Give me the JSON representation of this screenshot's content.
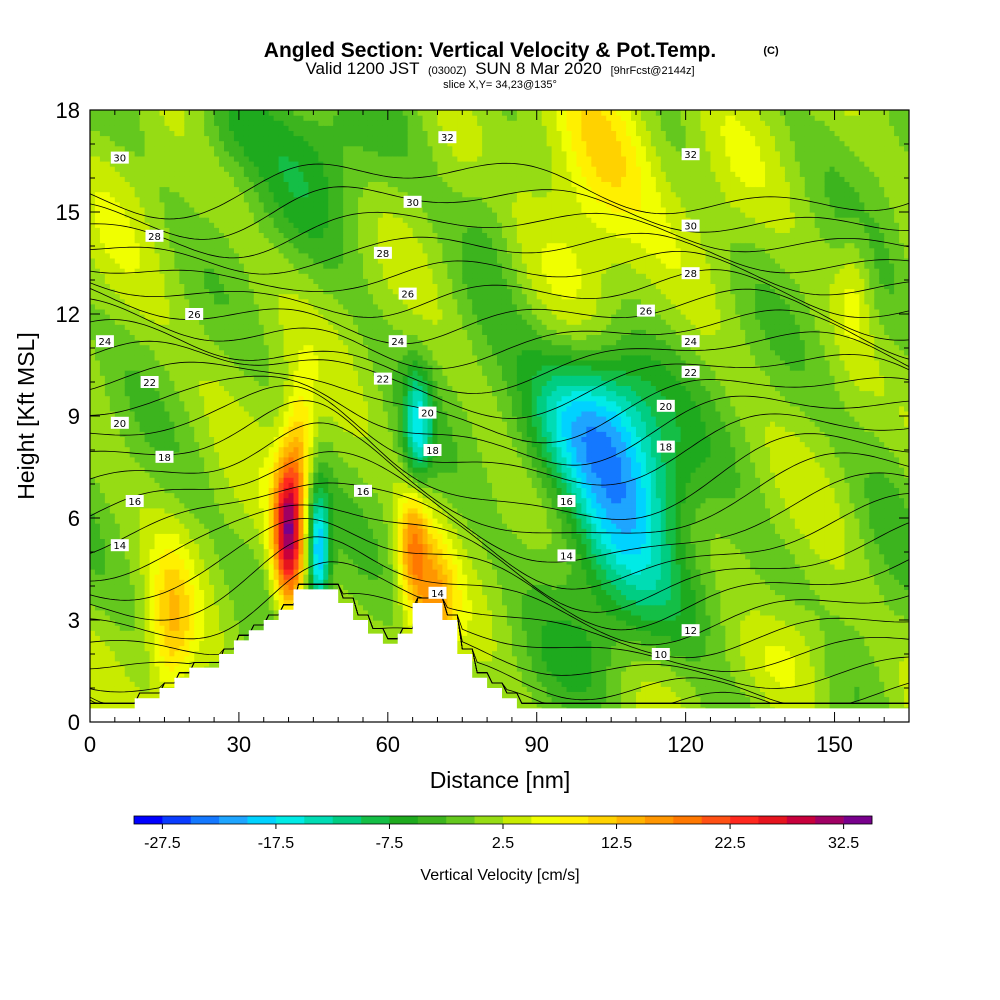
{
  "chart_data": {
    "type": "heatmap",
    "title": "Angled Section: Vertical Velocity & Pot.Temp.",
    "title_mark": "(C)",
    "subtitle_parts": [
      "Valid 1200 JST",
      "(0300Z)",
      "SUN 8 Mar 2020",
      "[9hrFcst@2144z]"
    ],
    "slice_label": "slice X,Y= 34,23@135°",
    "xlabel": "Distance [nm]",
    "ylabel": "Height [Kft MSL]",
    "xlim": [
      0,
      165
    ],
    "ylim": [
      0,
      18
    ],
    "x_ticks": [
      0,
      30,
      60,
      90,
      120,
      150
    ],
    "y_ticks": [
      0,
      3,
      6,
      9,
      12,
      15,
      18
    ],
    "colorbar": {
      "label": "Vertical Velocity [cm/s]",
      "tick_labels": [
        "-27.5",
        "-17.5",
        "-7.5",
        "2.5",
        "12.5",
        "22.5",
        "32.5"
      ],
      "tick_values": [
        -27.5,
        -17.5,
        -7.5,
        2.5,
        12.5,
        22.5,
        32.5
      ],
      "min": -30,
      "max": 35,
      "colors": [
        "#0000ff",
        "#0a3cff",
        "#1478ff",
        "#1ea5ff",
        "#00d2ff",
        "#00ebe6",
        "#00dcb4",
        "#00cd82",
        "#14be46",
        "#1eaa1e",
        "#3cb41e",
        "#64c81e",
        "#96dc14",
        "#c8eb00",
        "#f0ff00",
        "#fff000",
        "#ffd200",
        "#ffb400",
        "#ff9600",
        "#ff7800",
        "#ff5014",
        "#ff281e",
        "#e6141e",
        "#c8003c",
        "#a00064",
        "#78008c"
      ]
    },
    "background_velocity": 0.5,
    "velocity_features": [
      {
        "x": 40,
        "y": 5.6,
        "sx": 2.2,
        "sy": 1.6,
        "v": 30
      },
      {
        "x": 42.5,
        "y": 8.3,
        "sx": 2.0,
        "sy": 1.3,
        "v": 9
      },
      {
        "x": 46,
        "y": 5.0,
        "sx": 1.6,
        "sy": 1.3,
        "v": -21
      },
      {
        "x": 16.5,
        "y": 2.7,
        "sx": 3.2,
        "sy": 1.6,
        "v": 11
      },
      {
        "x": 65,
        "y": 5.2,
        "sx": 2.2,
        "sy": 1.3,
        "v": 15
      },
      {
        "x": 69.5,
        "y": 3.4,
        "sx": 3.0,
        "sy": 1.4,
        "v": 13
      },
      {
        "x": 66,
        "y": 8.6,
        "sx": 2.0,
        "sy": 1.2,
        "v": -15
      },
      {
        "x": 101,
        "y": 8.9,
        "sx": 9,
        "sy": 1.5,
        "v": -19
      },
      {
        "x": 108,
        "y": 6.3,
        "sx": 8,
        "sy": 1.8,
        "v": -16
      },
      {
        "x": 103,
        "y": 16.8,
        "sx": 8,
        "sy": 2.0,
        "v": 10
      },
      {
        "x": 97,
        "y": 13.5,
        "sx": 7,
        "sy": 1.5,
        "v": 4
      },
      {
        "x": 154,
        "y": 12.8,
        "sx": 2.5,
        "sy": 1.2,
        "v": 5
      },
      {
        "x": 143,
        "y": 2.0,
        "sx": 6,
        "sy": 1.2,
        "v": 5
      },
      {
        "x": 128,
        "y": 16.0,
        "sx": 6,
        "sy": 1.8,
        "v": 2
      },
      {
        "x": 45,
        "y": 16.5,
        "sx": 10,
        "sy": 1.8,
        "v": -5
      },
      {
        "x": 28,
        "y": 17.5,
        "sx": 6,
        "sy": 1.0,
        "v": -5
      },
      {
        "x": 80,
        "y": 15.0,
        "sx": 4,
        "sy": 2.0,
        "v": -3
      },
      {
        "x": 5,
        "y": 15.5,
        "sx": 6,
        "sy": 2.0,
        "v": 2
      },
      {
        "x": 118,
        "y": 3.5,
        "sx": 12,
        "sy": 1.2,
        "v": -5
      },
      {
        "x": 98,
        "y": 1.8,
        "sx": 8,
        "sy": 1.0,
        "v": -3
      },
      {
        "x": 31,
        "y": 11.0,
        "sx": 8,
        "sy": 1.8,
        "v": 1.5
      },
      {
        "x": 160,
        "y": 9.0,
        "sx": 4,
        "sy": 4.0,
        "v": -2
      }
    ],
    "terrain": [
      [
        0,
        0.4
      ],
      [
        9,
        0.4
      ],
      [
        9,
        0.7
      ],
      [
        14,
        0.7
      ],
      [
        14,
        1.0
      ],
      [
        17,
        1.0
      ],
      [
        17,
        1.3
      ],
      [
        20,
        1.3
      ],
      [
        20,
        1.6
      ],
      [
        26,
        1.6
      ],
      [
        26,
        2.0
      ],
      [
        29,
        2.0
      ],
      [
        29,
        2.4
      ],
      [
        32,
        2.4
      ],
      [
        32,
        2.7
      ],
      [
        35,
        2.7
      ],
      [
        35,
        3.0
      ],
      [
        38,
        3.0
      ],
      [
        38,
        3.3
      ],
      [
        41,
        3.3
      ],
      [
        41,
        3.9
      ],
      [
        47,
        3.9
      ],
      [
        47,
        3.9
      ],
      [
        50,
        3.9
      ],
      [
        50,
        3.5
      ],
      [
        53,
        3.5
      ],
      [
        53,
        3.0
      ],
      [
        56,
        3.0
      ],
      [
        56,
        2.6
      ],
      [
        59,
        2.6
      ],
      [
        59,
        2.3
      ],
      [
        62,
        2.3
      ],
      [
        62,
        2.6
      ],
      [
        65,
        2.6
      ],
      [
        65,
        3.5
      ],
      [
        71,
        3.5
      ],
      [
        71,
        3.0
      ],
      [
        74,
        3.0
      ],
      [
        74,
        2.0
      ],
      [
        77,
        2.0
      ],
      [
        77,
        1.3
      ],
      [
        80,
        1.3
      ],
      [
        80,
        1.0
      ],
      [
        83,
        1.0
      ],
      [
        83,
        0.7
      ],
      [
        86,
        0.7
      ],
      [
        86,
        0.4
      ],
      [
        165,
        0.4
      ]
    ],
    "theta_labeled": [
      10,
      12,
      14,
      16,
      18,
      20,
      22,
      24,
      26,
      28,
      30,
      32
    ],
    "theta_labels": [
      {
        "text": "30",
        "x": 6,
        "y": 16.6
      },
      {
        "text": "32",
        "x": 72,
        "y": 17.2
      },
      {
        "text": "32",
        "x": 121,
        "y": 16.7
      },
      {
        "text": "30",
        "x": 65,
        "y": 15.3
      },
      {
        "text": "28",
        "x": 13,
        "y": 14.3
      },
      {
        "text": "28",
        "x": 59,
        "y": 13.8
      },
      {
        "text": "30",
        "x": 121,
        "y": 14.6
      },
      {
        "text": "28",
        "x": 121,
        "y": 13.2
      },
      {
        "text": "26",
        "x": 64,
        "y": 12.6
      },
      {
        "text": "26",
        "x": 112,
        "y": 12.1
      },
      {
        "text": "26",
        "x": 21,
        "y": 12.0
      },
      {
        "text": "24",
        "x": 3,
        "y": 11.2
      },
      {
        "text": "24",
        "x": 62,
        "y": 11.2
      },
      {
        "text": "24",
        "x": 121,
        "y": 11.2
      },
      {
        "text": "22",
        "x": 12,
        "y": 10.0
      },
      {
        "text": "22",
        "x": 59,
        "y": 10.1
      },
      {
        "text": "22",
        "x": 121,
        "y": 10.3
      },
      {
        "text": "20",
        "x": 6,
        "y": 8.8
      },
      {
        "text": "20",
        "x": 68,
        "y": 9.1
      },
      {
        "text": "20",
        "x": 116,
        "y": 9.3
      },
      {
        "text": "18",
        "x": 15,
        "y": 7.8
      },
      {
        "text": "18",
        "x": 69,
        "y": 8.0
      },
      {
        "text": "18",
        "x": 116,
        "y": 8.1
      },
      {
        "text": "16",
        "x": 9,
        "y": 6.5
      },
      {
        "text": "16",
        "x": 55,
        "y": 6.8
      },
      {
        "text": "16",
        "x": 96,
        "y": 6.5
      },
      {
        "text": "14",
        "x": 6,
        "y": 5.2
      },
      {
        "text": "14",
        "x": 70,
        "y": 3.8
      },
      {
        "text": "14",
        "x": 96,
        "y": 4.9
      },
      {
        "text": "12",
        "x": 121,
        "y": 2.7
      },
      {
        "text": "10",
        "x": 115,
        "y": 2.0
      }
    ]
  }
}
